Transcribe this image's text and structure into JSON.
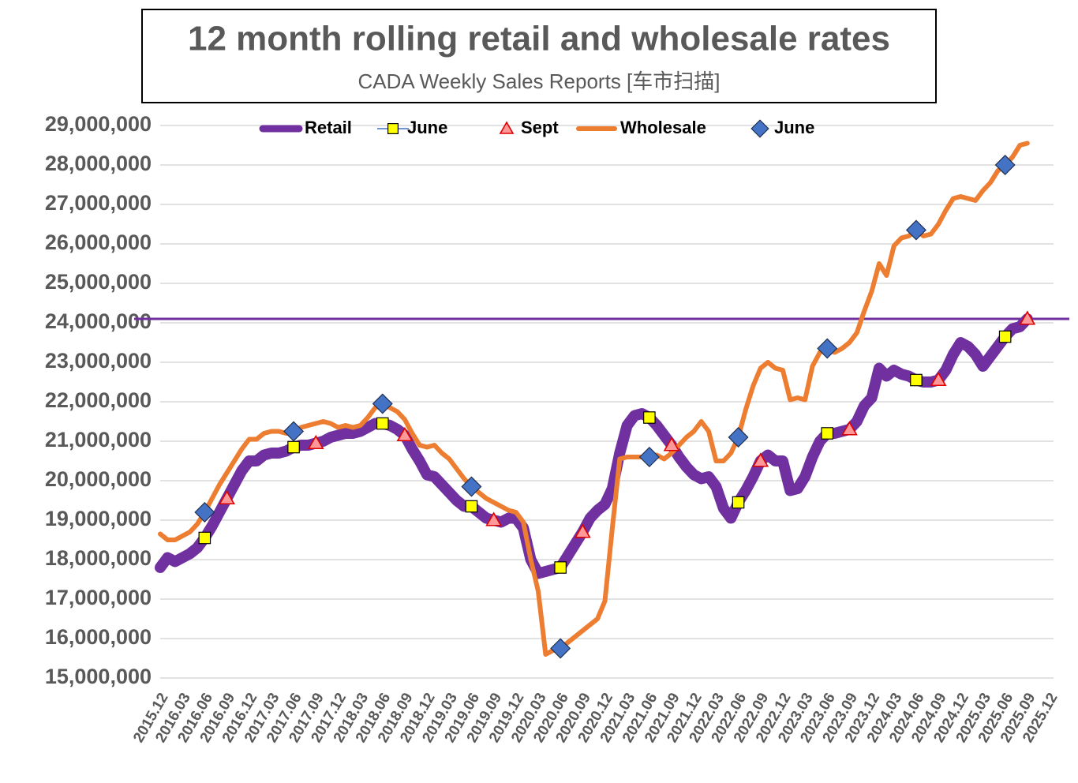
{
  "chart_data": {
    "type": "line",
    "title": "12 month rolling retail and wholesale rates",
    "subtitle": "CADA Weekly Sales Reports [车市扫描]",
    "categories": [
      "2015.12",
      null,
      null,
      "2016.03",
      null,
      null,
      "2016.06",
      null,
      null,
      "2016.09",
      null,
      null,
      "2016.12",
      null,
      null,
      "2017.03",
      null,
      null,
      "2017.06",
      null,
      null,
      "2017.09",
      null,
      null,
      "2017.12",
      null,
      null,
      "2018.03",
      null,
      null,
      "2018.06",
      null,
      null,
      "2018.09",
      null,
      null,
      "2018.12",
      null,
      null,
      "2019.03",
      null,
      null,
      "2019.06",
      null,
      null,
      "2019.09",
      null,
      null,
      "2019.12",
      null,
      null,
      "2020.03",
      null,
      null,
      "2020.06",
      null,
      null,
      "2020.09",
      null,
      null,
      "2020.12",
      null,
      null,
      "2021.03",
      null,
      null,
      "2021.06",
      null,
      null,
      "2021.09",
      null,
      null,
      "2021.12",
      null,
      null,
      "2022.03",
      null,
      null,
      "2022.06",
      null,
      null,
      "2022.09",
      null,
      null,
      "2022.12",
      null,
      null,
      "2023.03",
      null,
      null,
      "2023.06",
      null,
      null,
      "2023.09",
      null,
      null,
      "2023.12",
      null,
      null,
      "2024.03",
      null,
      null,
      "2024.06",
      null,
      null,
      "2024.09",
      null,
      null,
      "2024.12",
      null,
      null,
      "2025.03",
      null,
      null,
      "2025.06",
      null,
      null,
      "2025.09",
      null,
      null,
      "2025.12"
    ],
    "series": [
      {
        "name": "Retail",
        "color": "#7030a0",
        "style": "line",
        "width": 14,
        "values": [
          17800000,
          18050000,
          17950000,
          18050000,
          18150000,
          18300000,
          18550000,
          18850000,
          19200000,
          19550000,
          19900000,
          20250000,
          20500000,
          20500000,
          20650000,
          20700000,
          20700000,
          20750000,
          20850000,
          20900000,
          20900000,
          20950000,
          21000000,
          21100000,
          21150000,
          21200000,
          21200000,
          21250000,
          21350000,
          21450000,
          21450000,
          21400000,
          21300000,
          21150000,
          20800000,
          20500000,
          20150000,
          20100000,
          19900000,
          19700000,
          19500000,
          19350000,
          19350000,
          19200000,
          19050000,
          19000000,
          18950000,
          19050000,
          19050000,
          18800000,
          18000000,
          17650000,
          17700000,
          17750000,
          17800000,
          18100000,
          18400000,
          18700000,
          19050000,
          19250000,
          19400000,
          19800000,
          20700000,
          21400000,
          21650000,
          21700000,
          21600000,
          21400000,
          21150000,
          20900000,
          20600000,
          20350000,
          20150000,
          20050000,
          20100000,
          19850000,
          19300000,
          19050000,
          19450000,
          19750000,
          20100000,
          20500000,
          20650000,
          20500000,
          20500000,
          19750000,
          19800000,
          20100000,
          20600000,
          21000000,
          21200000,
          21200000,
          21250000,
          21300000,
          21500000,
          21900000,
          22100000,
          22850000,
          22650000,
          22800000,
          22700000,
          22650000,
          22550000,
          22500000,
          22500000,
          22550000,
          22800000,
          23200000,
          23500000,
          23400000,
          23200000,
          22900000,
          23150000,
          23400000,
          23650000,
          23850000,
          23900000,
          24100000,
          null,
          null,
          null
        ]
      },
      {
        "name": "June",
        "color": "#ffff00",
        "style": "square",
        "values": [
          null,
          null,
          null,
          null,
          null,
          null,
          18550000,
          null,
          null,
          null,
          null,
          null,
          null,
          null,
          null,
          null,
          null,
          null,
          20850000,
          null,
          null,
          null,
          null,
          null,
          null,
          null,
          null,
          null,
          null,
          null,
          21450000,
          null,
          null,
          null,
          null,
          null,
          null,
          null,
          null,
          null,
          null,
          null,
          19350000,
          null,
          null,
          null,
          null,
          null,
          null,
          null,
          null,
          null,
          null,
          null,
          17800000,
          null,
          null,
          null,
          null,
          null,
          null,
          null,
          null,
          null,
          null,
          null,
          21600000,
          null,
          null,
          null,
          null,
          null,
          null,
          null,
          null,
          null,
          null,
          null,
          19450000,
          null,
          null,
          null,
          null,
          null,
          null,
          null,
          null,
          null,
          null,
          null,
          21200000,
          null,
          null,
          null,
          null,
          null,
          null,
          null,
          null,
          null,
          null,
          null,
          22550000,
          null,
          null,
          null,
          null,
          null,
          null,
          null,
          null,
          null,
          null,
          null,
          23650000,
          null,
          null,
          null,
          null,
          null,
          null
        ]
      },
      {
        "name": "Sept",
        "color": "#ff9999",
        "style": "triangle",
        "values": [
          null,
          null,
          null,
          null,
          null,
          null,
          null,
          null,
          null,
          19550000,
          null,
          null,
          null,
          null,
          null,
          null,
          null,
          null,
          null,
          null,
          null,
          20950000,
          null,
          null,
          null,
          null,
          null,
          null,
          null,
          null,
          null,
          null,
          null,
          21150000,
          null,
          null,
          null,
          null,
          null,
          null,
          null,
          null,
          null,
          null,
          null,
          19000000,
          null,
          null,
          null,
          null,
          null,
          null,
          null,
          null,
          null,
          null,
          null,
          18700000,
          null,
          null,
          null,
          null,
          null,
          null,
          null,
          null,
          null,
          null,
          null,
          20900000,
          null,
          null,
          null,
          null,
          null,
          null,
          null,
          null,
          null,
          null,
          null,
          20500000,
          null,
          null,
          null,
          null,
          null,
          null,
          null,
          null,
          null,
          null,
          null,
          21300000,
          null,
          null,
          null,
          null,
          null,
          null,
          null,
          null,
          null,
          null,
          null,
          22550000,
          null,
          null,
          null,
          null,
          null,
          null,
          null,
          null,
          null,
          null,
          null,
          24100000,
          null,
          null,
          null
        ]
      },
      {
        "name": "Wholesale",
        "color": "#ed7d31",
        "style": "line",
        "width": 6,
        "values": [
          18650000,
          18500000,
          18500000,
          18600000,
          18700000,
          18900000,
          19200000,
          19550000,
          19900000,
          20200000,
          20500000,
          20800000,
          21050000,
          21050000,
          21200000,
          21250000,
          21250000,
          21200000,
          21250000,
          21350000,
          21400000,
          21450000,
          21500000,
          21450000,
          21350000,
          21400000,
          21350000,
          21400000,
          21600000,
          21850000,
          21950000,
          21850000,
          21750000,
          21550000,
          21200000,
          20900000,
          20850000,
          20900000,
          20700000,
          20550000,
          20300000,
          20050000,
          19850000,
          19700000,
          19550000,
          19450000,
          19350000,
          19250000,
          19200000,
          18950000,
          18000000,
          17200000,
          15600000,
          15700000,
          15750000,
          15900000,
          16050000,
          16200000,
          16350000,
          16500000,
          16950000,
          18800000,
          20550000,
          20600000,
          20600000,
          20600000,
          20600000,
          20650000,
          20550000,
          20700000,
          20900000,
          21100000,
          21250000,
          21500000,
          21250000,
          20500000,
          20500000,
          20700000,
          21100000,
          21800000,
          22400000,
          22850000,
          23000000,
          22850000,
          22800000,
          22050000,
          22100000,
          22050000,
          22900000,
          23250000,
          23350000,
          23250000,
          23350000,
          23500000,
          23750000,
          24300000,
          24800000,
          25500000,
          25200000,
          25950000,
          26150000,
          26200000,
          26350000,
          26200000,
          26250000,
          26500000,
          26850000,
          27150000,
          27200000,
          27150000,
          27100000,
          27350000,
          27550000,
          27850000,
          28000000,
          28200000,
          28500000,
          28550000,
          null,
          null,
          null
        ]
      },
      {
        "name": "June",
        "color": "#4472c4",
        "style": "diamond",
        "values": [
          null,
          null,
          null,
          null,
          null,
          null,
          19200000,
          null,
          null,
          null,
          null,
          null,
          null,
          null,
          null,
          null,
          null,
          null,
          21250000,
          null,
          null,
          null,
          null,
          null,
          null,
          null,
          null,
          null,
          null,
          null,
          21950000,
          null,
          null,
          null,
          null,
          null,
          null,
          null,
          null,
          null,
          null,
          null,
          19850000,
          null,
          null,
          null,
          null,
          null,
          null,
          null,
          null,
          null,
          null,
          null,
          15750000,
          null,
          null,
          null,
          null,
          null,
          null,
          null,
          null,
          null,
          null,
          null,
          20600000,
          null,
          null,
          null,
          null,
          null,
          null,
          null,
          null,
          null,
          null,
          null,
          21100000,
          null,
          null,
          null,
          null,
          null,
          null,
          null,
          null,
          null,
          null,
          null,
          23350000,
          null,
          null,
          null,
          null,
          null,
          null,
          null,
          null,
          null,
          null,
          null,
          26350000,
          null,
          null,
          null,
          null,
          null,
          null,
          null,
          null,
          null,
          null,
          null,
          28000000,
          null,
          null,
          null,
          null,
          null,
          null
        ]
      }
    ],
    "reference_line": {
      "value": 24100000,
      "color": "#7030a0"
    },
    "ylim": [
      15000000,
      29000000
    ],
    "yticks": [
      {
        "value": 15000000,
        "label": "15,000,000"
      },
      {
        "value": 16000000,
        "label": "16,000,000"
      },
      {
        "value": 17000000,
        "label": "17,000,000"
      },
      {
        "value": 18000000,
        "label": "18,000,000"
      },
      {
        "value": 19000000,
        "label": "19,000,000"
      },
      {
        "value": 20000000,
        "label": "20,000,000"
      },
      {
        "value": 21000000,
        "label": "21,000,000"
      },
      {
        "value": 22000000,
        "label": "22,000,000"
      },
      {
        "value": 23000000,
        "label": "23,000,000"
      },
      {
        "value": 24000000,
        "label": "24,000,000"
      },
      {
        "value": 25000000,
        "label": "25,000,000"
      },
      {
        "value": 26000000,
        "label": "26,000,000"
      },
      {
        "value": 27000000,
        "label": "27,000,000"
      },
      {
        "value": 28000000,
        "label": "28,000,000"
      },
      {
        "value": 29000000,
        "label": "29,000,000"
      }
    ],
    "grid": true,
    "legend": "top"
  }
}
